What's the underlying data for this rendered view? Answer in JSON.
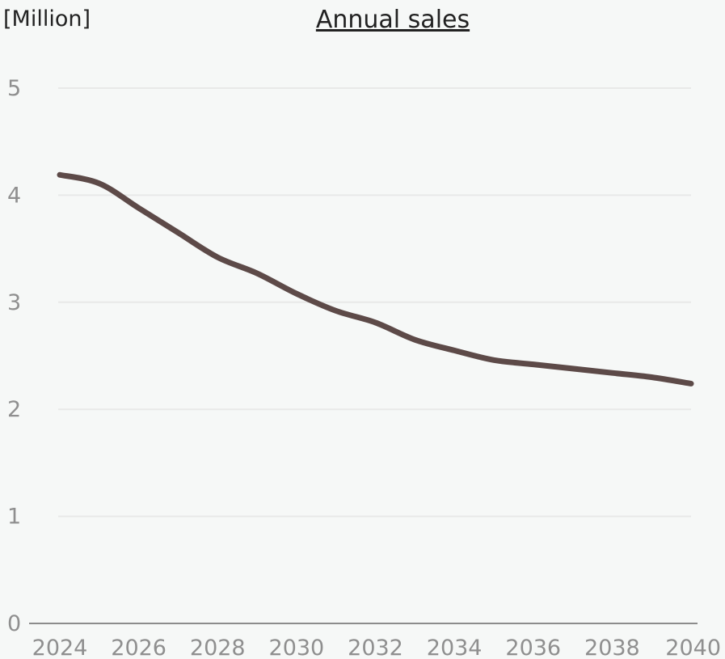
{
  "chart_data": {
    "type": "line",
    "title": "Annual sales",
    "ylabel": "[Million]",
    "xlabel": "",
    "x": [
      2024,
      2025,
      2026,
      2027,
      2028,
      2029,
      2030,
      2031,
      2032,
      2033,
      2034,
      2035,
      2036,
      2037,
      2038,
      2039,
      2040
    ],
    "series": [
      {
        "values": [
          4.19,
          4.11,
          3.88,
          3.65,
          3.42,
          3.27,
          3.08,
          2.92,
          2.81,
          2.65,
          2.55,
          2.46,
          2.42,
          2.38,
          2.34,
          2.3,
          2.24
        ]
      }
    ],
    "xlim": [
      2024,
      2040
    ],
    "ylim": [
      0,
      5
    ],
    "x_ticks": [
      "2024",
      "2026",
      "2028",
      "2030",
      "2032",
      "2034",
      "2036",
      "2038",
      "2040"
    ],
    "y_ticks": [
      "0",
      "1",
      "2",
      "3",
      "4",
      "5"
    ],
    "grid": true,
    "legend": "none",
    "colors": {
      "background": "#f6f8f7",
      "line": "#5d4a48",
      "grid": "#e8e9e8",
      "axis": "#8c8c8c",
      "tick_text": "#8f8f8f",
      "title_text": "#222222"
    }
  }
}
